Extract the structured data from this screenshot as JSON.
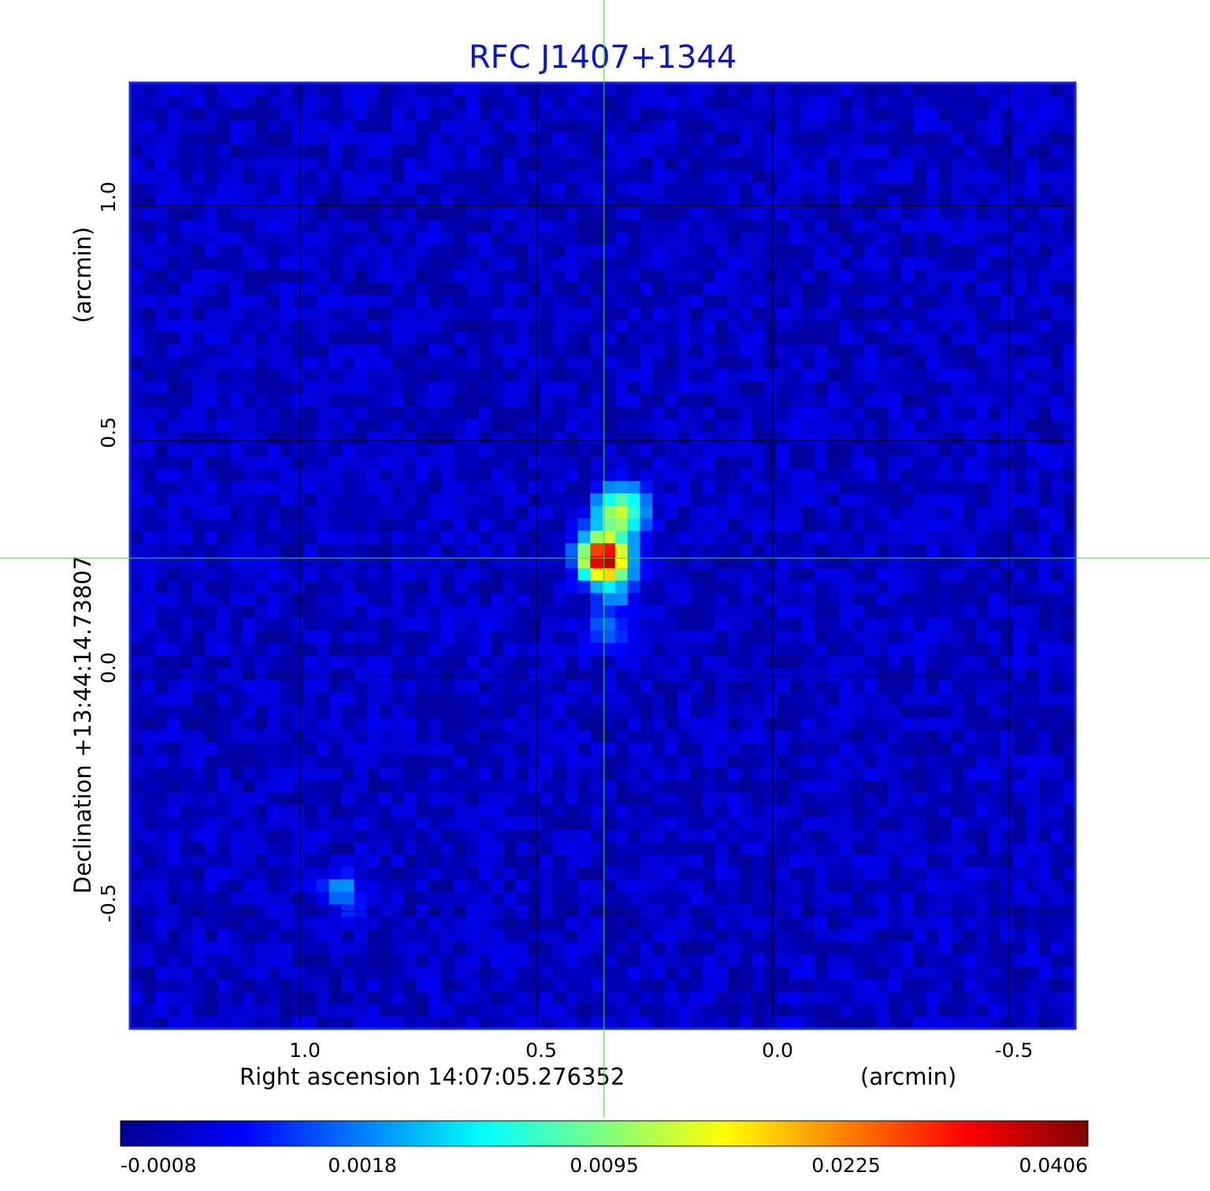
{
  "chart_data": {
    "type": "heatmap",
    "title": "RFC J1407+1344",
    "xlabel": "Right ascension  14:07:05.276352",
    "xunit": "(arcmin)",
    "ylabel": "Declination  +13:44:14.73807",
    "yunit": "(arcmin)",
    "x_ticks": [
      "1.0",
      "0.5",
      "0.0",
      "-0.5"
    ],
    "y_ticks": [
      "1.0",
      "0.5",
      "0.0",
      "-0.5"
    ],
    "x_tick_values": [
      1.0,
      0.5,
      0.0,
      -0.5
    ],
    "y_tick_values": [
      1.0,
      0.5,
      0.0,
      -0.5
    ],
    "xlim": [
      1.36,
      -0.64
    ],
    "ylim": [
      -0.75,
      1.26
    ],
    "grid": true,
    "crosshair": {
      "x": 0.357,
      "y": 0.25
    },
    "colorbar": {
      "ticks": [
        "-0.0008",
        "0.0018",
        "0.0095",
        "0.0225",
        "0.0406"
      ],
      "tick_values": [
        -0.0008,
        0.0018,
        0.0095,
        0.0225,
        0.0406
      ],
      "colormap": "jet"
    },
    "sources": [
      {
        "x": 0.357,
        "y": 0.25,
        "peak": 0.0406
      },
      {
        "x": 0.33,
        "y": 0.34,
        "peak": 0.012
      },
      {
        "x": 0.31,
        "y": 0.37,
        "peak": 0.004
      },
      {
        "x": 0.33,
        "y": 0.18,
        "peak": 0.0025
      },
      {
        "x": 0.36,
        "y": 0.1,
        "peak": 0.0022
      },
      {
        "x": 0.91,
        "y": -0.46,
        "peak": 0.0028
      }
    ],
    "title_color": "#0a14d2",
    "crosshair_color": "#33dd33"
  }
}
